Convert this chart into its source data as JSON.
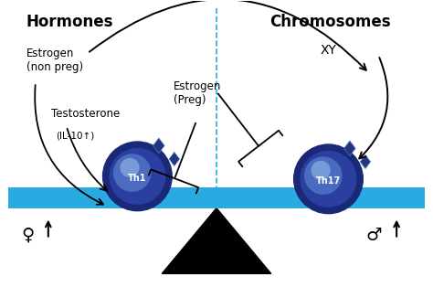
{
  "bg_color": "#ffffff",
  "bar_color": "#29abe2",
  "dashed_line_color": "#29abe2",
  "title_left": "Hormones",
  "title_right": "Chromosomes",
  "label_xy": "XY",
  "label_estrogen_nonpreg": "Estrogen\n(non preg)",
  "label_testosterone": "Testosterone",
  "label_il10": "(IL-10↑)",
  "label_estrogen_preg": "Estrogen\n(Preg)",
  "female_symbol": "♀",
  "male_symbol": "♂",
  "cell_outer_color": "#1a2878",
  "cell_mid_color": "#2a3fa0",
  "cell_inner_color": "#4a6bbf",
  "cell_highlight_color": "#8ab0e0",
  "diamond_color": "#243580",
  "arrow_color": "#111111",
  "figw": 4.74,
  "figh": 3.14,
  "dpi": 100
}
